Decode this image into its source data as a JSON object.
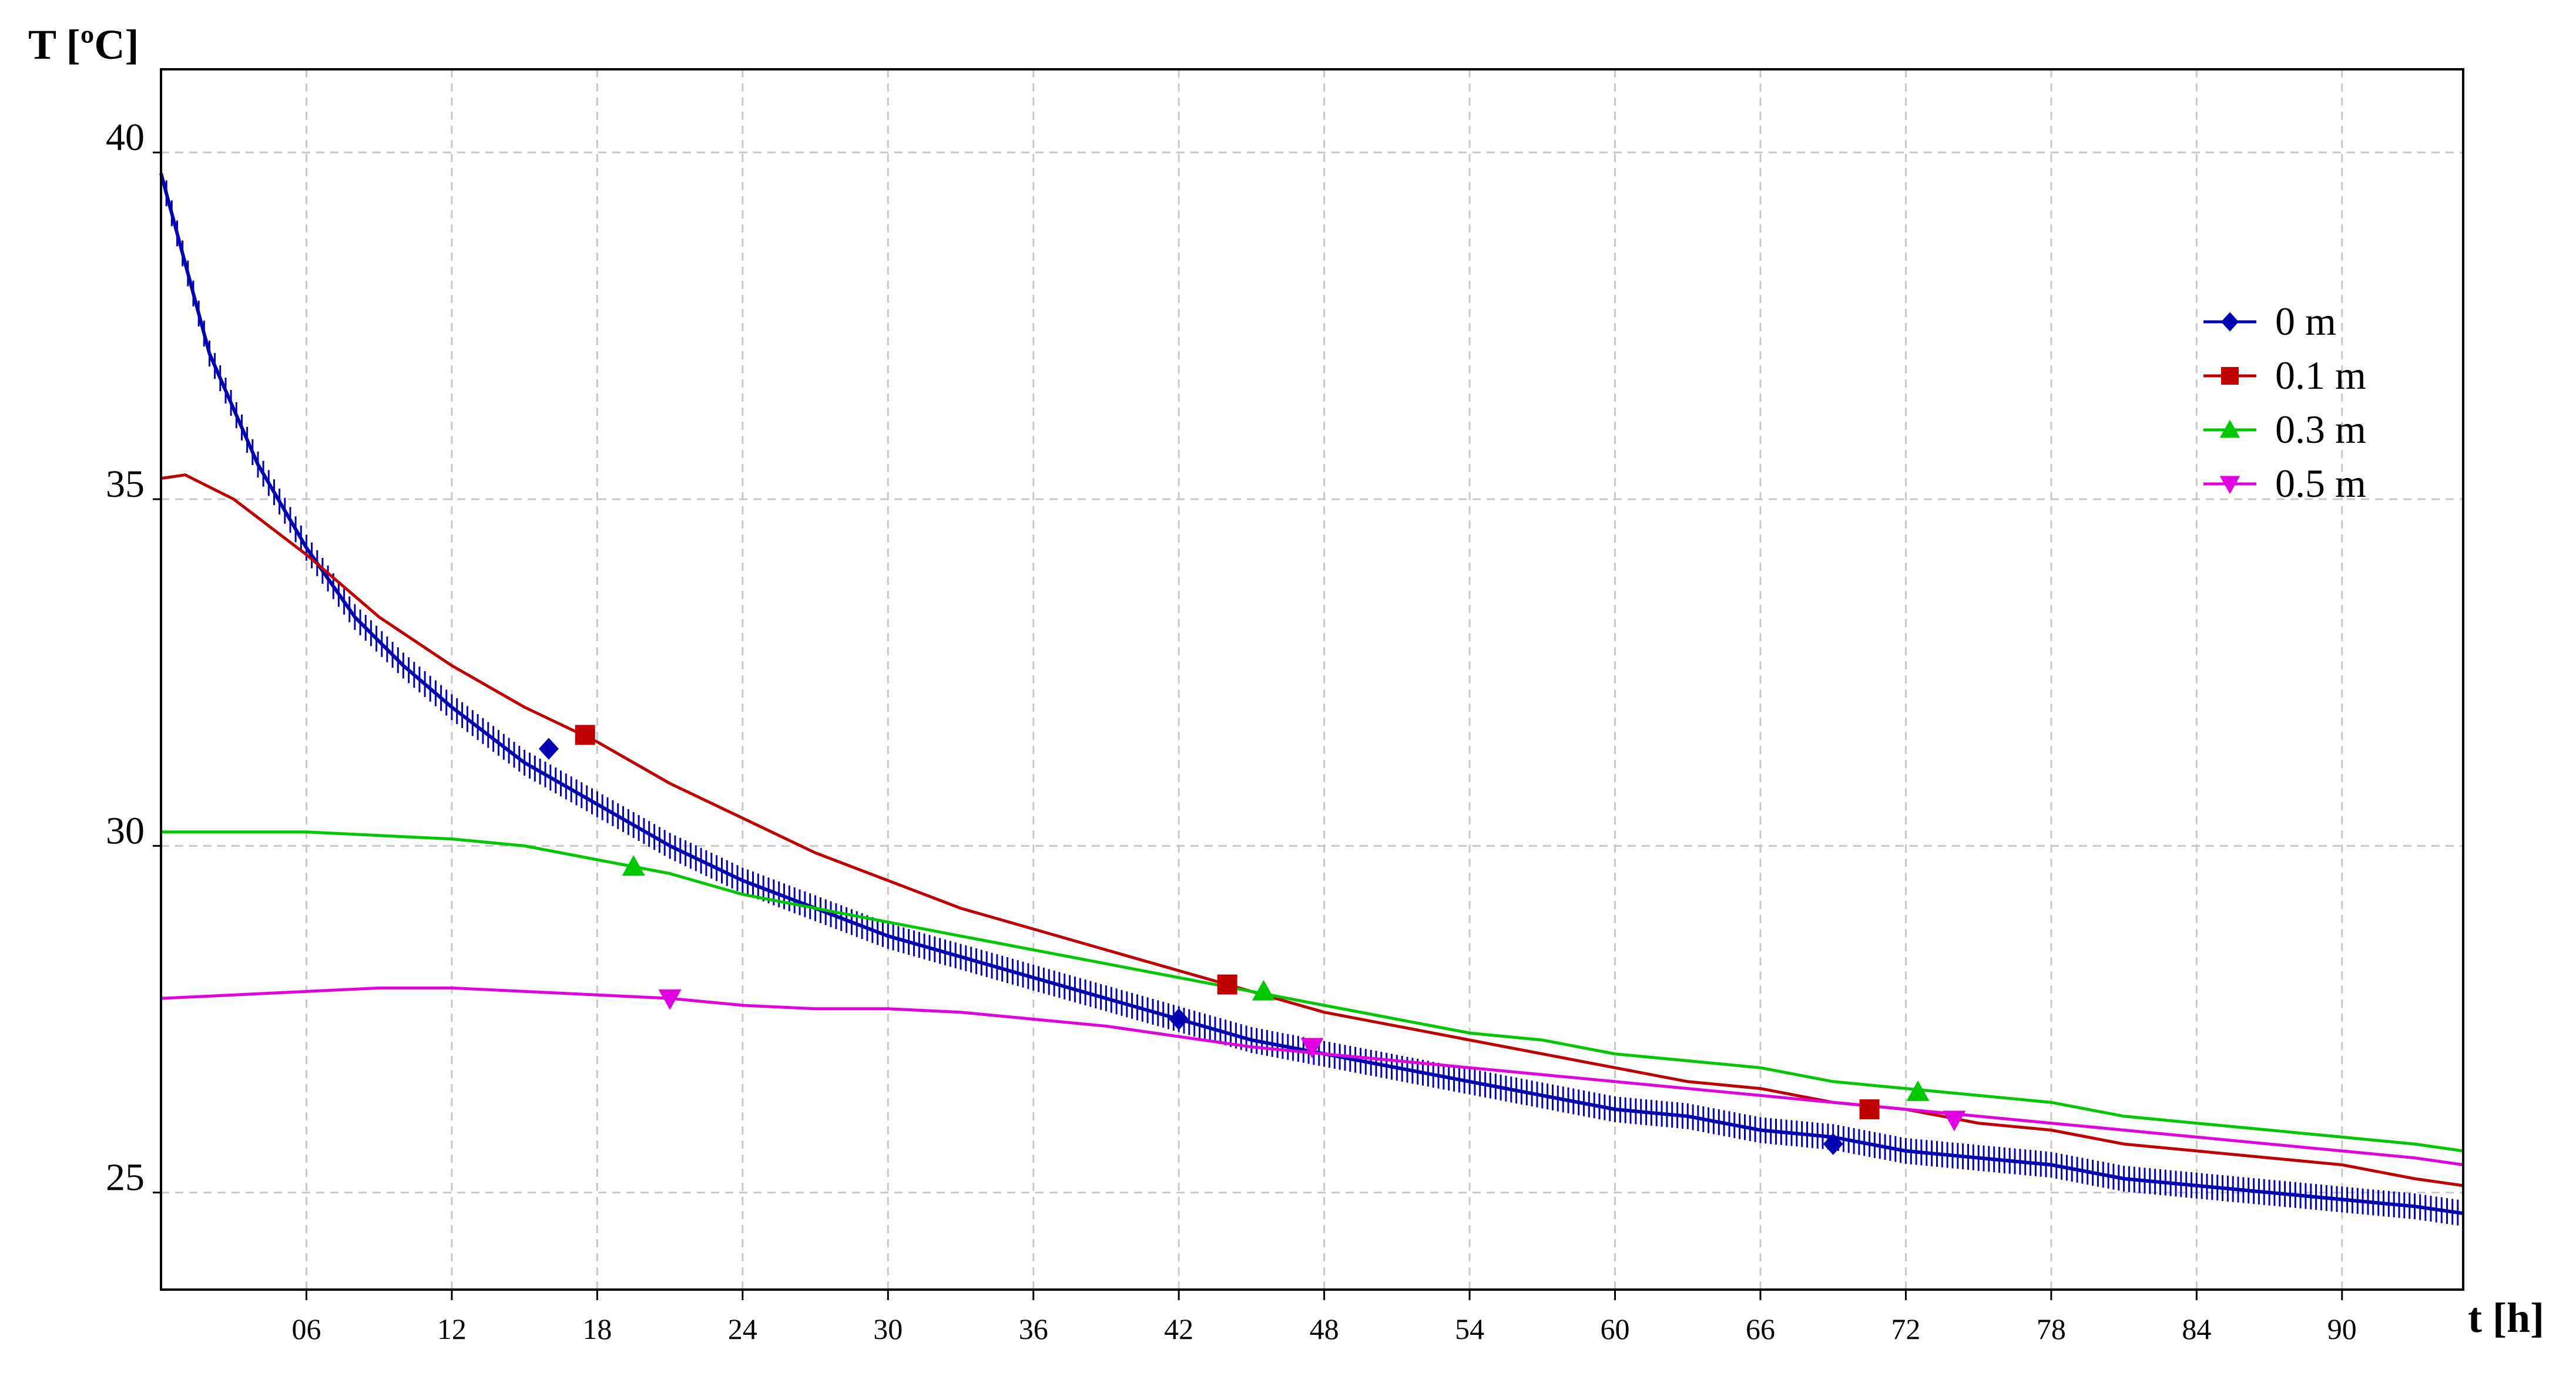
{
  "chart_data": {
    "type": "line",
    "ylabel": "T [ºC]",
    "xlabel": "t [h]",
    "xlim": [
      0,
      95
    ],
    "ylim": [
      23.6,
      41.2
    ],
    "x_ticks": [
      6,
      12,
      18,
      24,
      30,
      36,
      42,
      48,
      54,
      60,
      66,
      72,
      78,
      84,
      90
    ],
    "x_tick_labels": [
      "06",
      "12",
      "18",
      "24",
      "30",
      "36",
      "42",
      "48",
      "54",
      "60",
      "66",
      "72",
      "78",
      "84",
      "90"
    ],
    "y_ticks": [
      25,
      30,
      35,
      40
    ],
    "y_tick_labels": [
      "25",
      "30",
      "35",
      "40"
    ],
    "grid": true,
    "legend_position": "top-right",
    "series": [
      {
        "name": "0 m",
        "color": "#0000b0",
        "marker": "diamond",
        "x": [
          0,
          2,
          4,
          6,
          8,
          10,
          12,
          15,
          18,
          21,
          24,
          27,
          30,
          33,
          36,
          39,
          42,
          45,
          48,
          51,
          54,
          57,
          60,
          63,
          66,
          69,
          72,
          75,
          78,
          81,
          84,
          87,
          90,
          93,
          95
        ],
        "y": [
          39.7,
          37.1,
          35.5,
          34.3,
          33.3,
          32.6,
          32.0,
          31.2,
          30.6,
          30.0,
          29.5,
          29.1,
          28.7,
          28.4,
          28.1,
          27.8,
          27.5,
          27.2,
          27.0,
          26.8,
          26.6,
          26.4,
          26.2,
          26.1,
          25.9,
          25.8,
          25.6,
          25.5,
          25.4,
          25.2,
          25.1,
          25.0,
          24.9,
          24.8,
          24.7
        ],
        "marker_x": [
          16,
          42,
          69
        ],
        "marker_y": [
          31.4,
          27.5,
          25.7
        ]
      },
      {
        "name": "0.1 m",
        "color": "#c00000",
        "marker": "square",
        "x": [
          0,
          1,
          3,
          6,
          9,
          12,
          15,
          18,
          21,
          24,
          27,
          30,
          33,
          36,
          39,
          42,
          45,
          48,
          51,
          54,
          57,
          60,
          63,
          66,
          69,
          72,
          75,
          78,
          81,
          84,
          87,
          90,
          93,
          95
        ],
        "y": [
          35.3,
          35.35,
          35.0,
          34.2,
          33.3,
          32.6,
          32.0,
          31.5,
          30.9,
          30.4,
          29.9,
          29.5,
          29.1,
          28.8,
          28.5,
          28.2,
          27.9,
          27.6,
          27.4,
          27.2,
          27.0,
          26.8,
          26.6,
          26.5,
          26.3,
          26.2,
          26.0,
          25.9,
          25.7,
          25.6,
          25.5,
          25.4,
          25.2,
          25.1
        ],
        "marker_x": [
          17.5,
          44,
          70.5
        ],
        "marker_y": [
          31.6,
          28.0,
          26.2
        ]
      },
      {
        "name": "0.3 m",
        "color": "#00c800",
        "marker": "triangle-up",
        "x": [
          0,
          3,
          6,
          9,
          12,
          15,
          18,
          21,
          24,
          27,
          30,
          33,
          36,
          39,
          42,
          45,
          48,
          51,
          54,
          57,
          60,
          63,
          66,
          69,
          72,
          75,
          78,
          81,
          84,
          87,
          90,
          93,
          95
        ],
        "y": [
          30.2,
          30.2,
          30.2,
          30.15,
          30.1,
          30.0,
          29.8,
          29.6,
          29.3,
          29.1,
          28.9,
          28.7,
          28.5,
          28.3,
          28.1,
          27.9,
          27.7,
          27.5,
          27.3,
          27.2,
          27.0,
          26.9,
          26.8,
          26.6,
          26.5,
          26.4,
          26.3,
          26.1,
          26.0,
          25.9,
          25.8,
          25.7,
          25.6
        ],
        "marker_x": [
          19.5,
          45.5,
          72.5
        ],
        "marker_y": [
          29.7,
          27.9,
          26.45
        ]
      },
      {
        "name": "0.5 m",
        "color": "#e000e0",
        "marker": "triangle-down",
        "x": [
          0,
          3,
          6,
          9,
          12,
          15,
          18,
          21,
          24,
          27,
          30,
          33,
          36,
          39,
          42,
          45,
          48,
          51,
          54,
          57,
          60,
          63,
          66,
          69,
          72,
          75,
          78,
          81,
          84,
          87,
          90,
          93,
          95
        ],
        "y": [
          27.8,
          27.85,
          27.9,
          27.95,
          27.95,
          27.9,
          27.85,
          27.8,
          27.7,
          27.65,
          27.65,
          27.6,
          27.5,
          27.4,
          27.25,
          27.1,
          27.0,
          26.9,
          26.8,
          26.7,
          26.6,
          26.5,
          26.4,
          26.3,
          26.2,
          26.1,
          26.0,
          25.9,
          25.8,
          25.7,
          25.6,
          25.5,
          25.4
        ],
        "marker_x": [
          21,
          47.5,
          74
        ],
        "marker_y": [
          27.8,
          27.1,
          26.05
        ]
      }
    ]
  }
}
